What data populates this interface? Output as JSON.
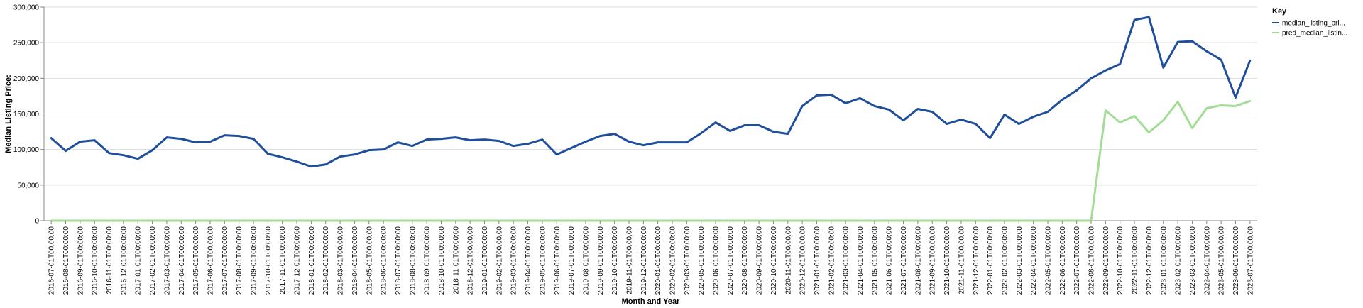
{
  "chart_data": {
    "type": "line",
    "title": "",
    "xlabel": "Month and Year",
    "ylabel": "Median Listing Price:",
    "ylim": [
      0,
      300000
    ],
    "y_ticks": [
      "0",
      "50,000",
      "100,000",
      "150,000",
      "200,000",
      "250,000",
      "300,000"
    ],
    "y_tick_values": [
      0,
      50000,
      100000,
      150000,
      200000,
      250000,
      300000
    ],
    "grid": true,
    "legend": {
      "title": "Key",
      "position": "right"
    },
    "colors": {
      "median_listing_price": "#1f4e9c",
      "pred_median_listing_price": "#a3dc97"
    },
    "x": [
      "2016-07-01T00:00:00",
      "2016-08-01T00:00:00",
      "2016-09-01T00:00:00",
      "2016-10-01T00:00:00",
      "2016-11-01T00:00:00",
      "2016-12-01T00:00:00",
      "2017-01-01T00:00:00",
      "2017-02-01T00:00:00",
      "2017-03-01T00:00:00",
      "2017-04-01T00:00:00",
      "2017-05-01T00:00:00",
      "2017-06-01T00:00:00",
      "2017-07-01T00:00:00",
      "2017-08-01T00:00:00",
      "2017-09-01T00:00:00",
      "2017-10-01T00:00:00",
      "2017-11-01T00:00:00",
      "2017-12-01T00:00:00",
      "2018-01-01T00:00:00",
      "2018-02-01T00:00:00",
      "2018-03-01T00:00:00",
      "2018-04-01T00:00:00",
      "2018-05-01T00:00:00",
      "2018-06-01T00:00:00",
      "2018-07-01T00:00:00",
      "2018-08-01T00:00:00",
      "2018-09-01T00:00:00",
      "2018-10-01T00:00:00",
      "2018-11-01T00:00:00",
      "2018-12-01T00:00:00",
      "2019-01-01T00:00:00",
      "2019-02-01T00:00:00",
      "2019-03-01T00:00:00",
      "2019-04-01T00:00:00",
      "2019-05-01T00:00:00",
      "2019-06-01T00:00:00",
      "2019-07-01T00:00:00",
      "2019-08-01T00:00:00",
      "2019-09-01T00:00:00",
      "2019-10-01T00:00:00",
      "2019-11-01T00:00:00",
      "2019-12-01T00:00:00",
      "2020-01-01T00:00:00",
      "2020-02-01T00:00:00",
      "2020-03-01T00:00:00",
      "2020-05-01T00:00:00",
      "2020-06-01T00:00:00",
      "2020-07-01T00:00:00",
      "2020-08-01T00:00:00",
      "2020-09-01T00:00:00",
      "2020-10-01T00:00:00",
      "2020-11-01T00:00:00",
      "2020-12-01T00:00:00",
      "2021-01-01T00:00:00",
      "2021-02-01T00:00:00",
      "2021-03-01T00:00:00",
      "2021-04-01T00:00:00",
      "2021-05-01T00:00:00",
      "2021-06-01T00:00:00",
      "2021-07-01T00:00:00",
      "2021-08-01T00:00:00",
      "2021-09-01T00:00:00",
      "2021-10-01T00:00:00",
      "2021-11-01T00:00:00",
      "2021-12-01T00:00:00",
      "2022-01-01T00:00:00",
      "2022-02-01T00:00:00",
      "2022-03-01T00:00:00",
      "2022-04-01T00:00:00",
      "2022-05-01T00:00:00",
      "2022-06-01T00:00:00",
      "2022-07-01T00:00:00",
      "2022-08-01T00:00:00",
      "2022-09-01T00:00:00",
      "2022-10-01T00:00:00",
      "2022-11-01T00:00:00",
      "2022-12-01T00:00:00",
      "2023-01-01T00:00:00",
      "2023-02-01T00:00:00",
      "2023-03-01T00:00:00",
      "2023-04-01T00:00:00",
      "2023-05-01T00:00:00",
      "2023-06-01T00:00:00",
      "2023-07-01T00:00:00"
    ],
    "series": [
      {
        "name": "median_listing_pri...",
        "values": [
          116000,
          98000,
          111000,
          113000,
          95000,
          92000,
          87000,
          99000,
          117000,
          115000,
          110000,
          111000,
          120000,
          119000,
          115000,
          94000,
          89000,
          83000,
          76000,
          79000,
          90000,
          93000,
          99000,
          100000,
          110000,
          105000,
          114000,
          115000,
          117000,
          113000,
          114000,
          112000,
          105000,
          108000,
          114000,
          93000,
          102000,
          111000,
          119000,
          122000,
          111000,
          106000,
          110000,
          110000,
          110000,
          123000,
          138000,
          126000,
          134000,
          134000,
          125000,
          122000,
          161000,
          176000,
          177000,
          165000,
          172000,
          161000,
          156000,
          141000,
          157000,
          153000,
          136000,
          142000,
          136000,
          116000,
          149000,
          136000,
          146000,
          153000,
          170000,
          183000,
          200000,
          211000,
          220000,
          282000,
          286000,
          215000,
          251000,
          252000,
          238000,
          226000,
          173000,
          225000
        ]
      },
      {
        "name": "pred_median_listin...",
        "values": [
          0,
          0,
          0,
          0,
          0,
          0,
          0,
          0,
          0,
          0,
          0,
          0,
          0,
          0,
          0,
          0,
          0,
          0,
          0,
          0,
          0,
          0,
          0,
          0,
          0,
          0,
          0,
          0,
          0,
          0,
          0,
          0,
          0,
          0,
          0,
          0,
          0,
          0,
          0,
          0,
          0,
          0,
          0,
          0,
          0,
          0,
          0,
          0,
          0,
          0,
          0,
          0,
          0,
          0,
          0,
          0,
          0,
          0,
          0,
          0,
          0,
          0,
          0,
          0,
          0,
          0,
          0,
          0,
          0,
          0,
          0,
          0,
          0,
          155000,
          138000,
          147000,
          124000,
          141000,
          167000,
          130000,
          158000,
          162000,
          161000,
          168000
        ]
      }
    ]
  }
}
